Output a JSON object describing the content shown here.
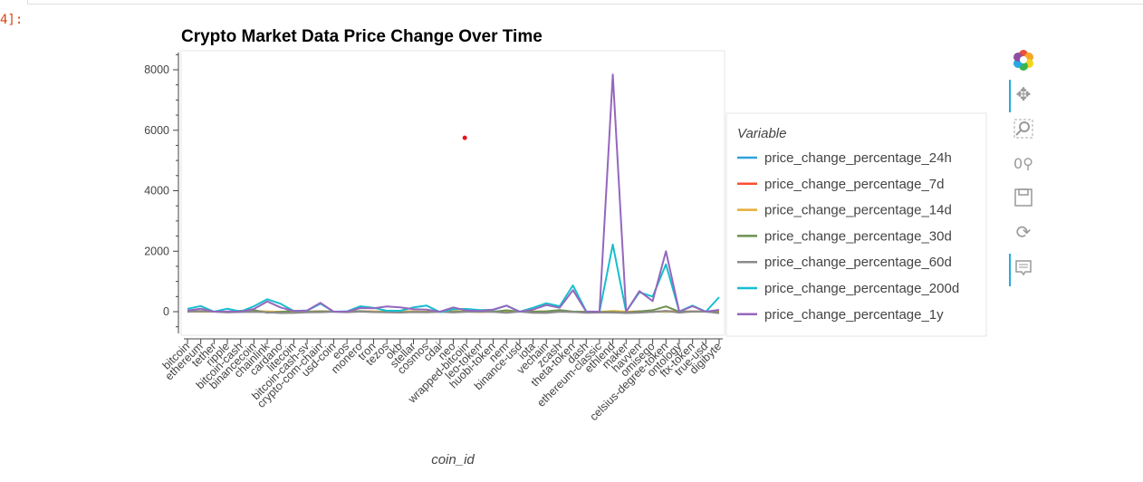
{
  "cell": {
    "prompt": "4]:"
  },
  "chart_data": {
    "type": "line",
    "title": "Crypto Market Data Price Change Over Time",
    "xlabel": "coin_id",
    "ylabel": "",
    "ylim": [
      -1000,
      8600
    ],
    "yticks": [
      0,
      2000,
      4000,
      6000,
      8000
    ],
    "categories": [
      "bitcoin",
      "ethereum",
      "tether",
      "ripple",
      "bitcoin-cash",
      "binancecoin",
      "chainlink",
      "cardano",
      "litecoin",
      "bitcoin-cash-sv",
      "crypto-com-chain",
      "usd-coin",
      "eos",
      "monero",
      "tron",
      "tezos",
      "okb",
      "stellar",
      "cosmos",
      "cdai",
      "neo",
      "wrapped-bitcoin",
      "leo-token",
      "huobi-token",
      "nem",
      "binance-usd",
      "iota",
      "vechain",
      "zcash",
      "theta-token",
      "dash",
      "ethereum-classic",
      "ethlend",
      "maker",
      "havven",
      "omisego",
      "celsius-degree-token",
      "ontology",
      "ftx-token",
      "true-usd",
      "digibyte"
    ],
    "legend": {
      "title": "Variable",
      "placement": "right"
    },
    "series": [
      {
        "name": "price_change_percentage_24h",
        "color": "#30a2da",
        "values": [
          1,
          0.6,
          0,
          0,
          2.5,
          1.8,
          -0.5,
          0,
          2.5,
          -0.3,
          5,
          0,
          2,
          2,
          -0.4,
          3,
          2.5,
          2,
          0,
          0,
          0.5,
          1.3,
          -2,
          2,
          -3,
          0,
          0,
          -1,
          -1,
          -2,
          -0.3,
          -1,
          -1,
          0,
          4,
          0,
          -9,
          5,
          -0.5,
          2,
          -2
        ]
      },
      {
        "name": "price_change_percentage_7d",
        "color": "#fc4f30",
        "values": [
          7,
          10,
          0,
          -3,
          16,
          13,
          -9,
          -7,
          20,
          0,
          15,
          0,
          -2,
          11,
          5,
          -5,
          -0.3,
          6,
          -2,
          0,
          8,
          -0.3,
          -2,
          -0.2,
          -1,
          0,
          -0.5,
          -5,
          3,
          -2,
          -2,
          -2,
          1,
          -4,
          11,
          -5,
          21,
          -4,
          12,
          -0.2,
          0
        ]
      },
      {
        "name": "price_change_percentage_14d",
        "color": "#e5ae38",
        "values": [
          6,
          5,
          0,
          -3,
          6,
          22,
          5,
          -6,
          -4,
          -9,
          7,
          0,
          0,
          14,
          2,
          3,
          2,
          5,
          -5,
          0,
          21,
          6,
          -11,
          2,
          0,
          0,
          10,
          6,
          11,
          -6,
          -6,
          -5,
          25,
          -1,
          -11,
          -1,
          -0.6,
          -5,
          -2,
          0,
          0
        ]
      },
      {
        "name": "price_change_percentage_30d",
        "color": "#6d904f",
        "values": [
          8,
          16,
          0,
          -6,
          29,
          50,
          -33,
          -13,
          30,
          -5,
          10,
          0,
          -8,
          19,
          -12,
          -7,
          -22,
          -8,
          -13,
          0,
          -5,
          8,
          2,
          -2,
          45,
          0,
          0,
          13,
          50,
          4,
          -2,
          -13,
          -11,
          -30,
          6,
          47,
          173,
          -4,
          7,
          0,
          -20
        ]
      },
      {
        "name": "price_change_percentage_60d",
        "color": "#8b8b8b",
        "values": [
          -5,
          26,
          0,
          -26,
          -13,
          -8,
          -19,
          -44,
          -43,
          -21,
          -19,
          -2,
          -19,
          -1,
          -15,
          -20,
          -30,
          -15,
          -24,
          -2,
          -27,
          -5,
          -3,
          -10,
          -39,
          0,
          -38,
          -41,
          -4,
          -12,
          -40,
          -30,
          -30,
          -44,
          -33,
          -7,
          28,
          -33,
          4,
          0,
          -48
        ]
      },
      {
        "name": "price_change_percentage_200d",
        "color": "#17becf",
        "values": [
          95,
          187,
          0,
          98,
          4,
          180,
          410,
          265,
          20,
          36,
          265,
          0,
          9,
          180,
          130,
          30,
          30,
          140,
          200,
          -15,
          80,
          90,
          50,
          60,
          200,
          0,
          130,
          280,
          180,
          870,
          10,
          0,
          2220,
          0,
          640,
          500,
          1565,
          5,
          200,
          -1,
          480
        ]
      },
      {
        "name": "price_change_percentage_1y",
        "color": "#9467bd",
        "values": [
          40,
          100,
          0,
          10,
          -3,
          90,
          340,
          140,
          20,
          40,
          290,
          0,
          0,
          120,
          110,
          170,
          140,
          80,
          70,
          0,
          140,
          40,
          20,
          70,
          200,
          0,
          70,
          220,
          130,
          710,
          0,
          0,
          7840,
          0,
          680,
          350,
          2000,
          0,
          180,
          0,
          60
        ]
      }
    ],
    "outliers": [
      {
        "x": "wrapped-bitcoin",
        "y": 5750,
        "color": "#e4161d"
      }
    ],
    "grid": false
  },
  "toolbar": {
    "icons": [
      "bokeh-logo-icon",
      "pan-icon",
      "box-zoom-icon",
      "wheel-zoom-icon",
      "save-icon",
      "reset-icon",
      "hover-icon"
    ]
  }
}
